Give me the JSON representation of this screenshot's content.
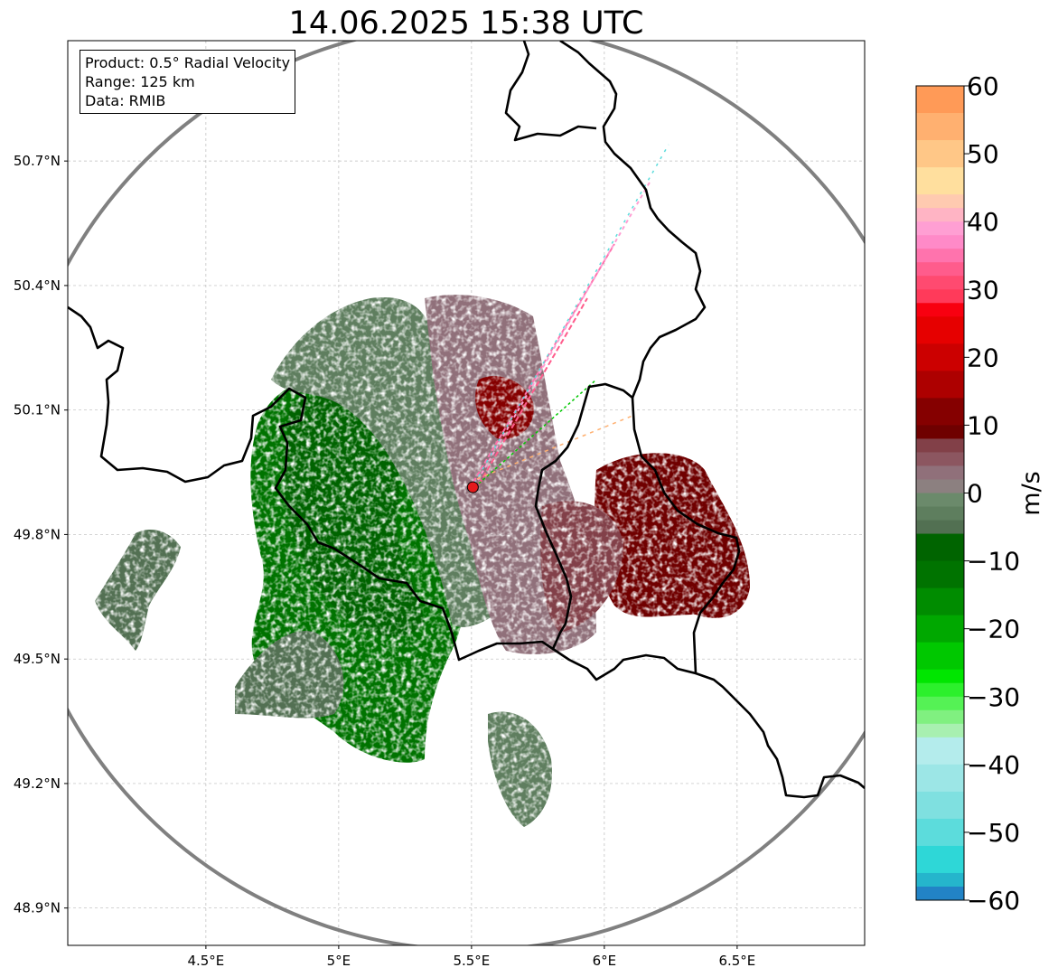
{
  "title": "14.06.2025 15:38 UTC",
  "info": {
    "product": "Product: 0.5° Radial Velocity",
    "range": "Range: 125 km",
    "data": "Data: RMIB"
  },
  "lat_labels": [
    "50.7°N",
    "50.4°N",
    "50.1°N",
    "49.8°N",
    "49.5°N",
    "49.2°N",
    "48.9°N"
  ],
  "lat_values": [
    50.7,
    50.4,
    50.1,
    49.8,
    49.5,
    49.2,
    48.9
  ],
  "lon_labels": [
    "4.5°E",
    "5°E",
    "5.5°E",
    "6°E",
    "6.5°E"
  ],
  "lon_values": [
    4.5,
    5.0,
    5.5,
    6.0,
    6.5
  ],
  "map_extent": {
    "lon": [
      3.98,
      6.98
    ],
    "lat": [
      48.81,
      50.99
    ]
  },
  "radar_site": {
    "lon": 5.505,
    "lat": 49.914
  },
  "colorbar": {
    "label": "m/s",
    "min": -60,
    "max": 60,
    "tick_values": [
      60,
      50,
      40,
      30,
      20,
      10,
      0,
      -10,
      -20,
      -30,
      -40,
      -50,
      -60
    ],
    "tick_labels": [
      "60",
      "50",
      "40",
      "30",
      "20",
      "10",
      "0",
      "−10",
      "−20",
      "−30",
      "−40",
      "−50",
      "−60"
    ],
    "bands": [
      {
        "from": 56,
        "to": 60,
        "color": "#ff9a57"
      },
      {
        "from": 52,
        "to": 56,
        "color": "#ffb070"
      },
      {
        "from": 48,
        "to": 52,
        "color": "#ffc787"
      },
      {
        "from": 44,
        "to": 48,
        "color": "#ffdf9e"
      },
      {
        "from": 42,
        "to": 44,
        "color": "#ffcab0"
      },
      {
        "from": 40,
        "to": 42,
        "color": "#ffb4c4"
      },
      {
        "from": 38,
        "to": 40,
        "color": "#ff9fd3"
      },
      {
        "from": 36,
        "to": 38,
        "color": "#ff8ac8"
      },
      {
        "from": 34,
        "to": 36,
        "color": "#ff73ad"
      },
      {
        "from": 32,
        "to": 34,
        "color": "#ff5c8c"
      },
      {
        "from": 30,
        "to": 32,
        "color": "#ff4a70"
      },
      {
        "from": 28,
        "to": 30,
        "color": "#ff3a5a"
      },
      {
        "from": 26,
        "to": 28,
        "color": "#f80010"
      },
      {
        "from": 22,
        "to": 26,
        "color": "#e60000"
      },
      {
        "from": 18,
        "to": 22,
        "color": "#cc0000"
      },
      {
        "from": 14,
        "to": 18,
        "color": "#ad0000"
      },
      {
        "from": 10,
        "to": 14,
        "color": "#850000"
      },
      {
        "from": 8,
        "to": 10,
        "color": "#6f0000"
      },
      {
        "from": 6,
        "to": 8,
        "color": "#824048"
      },
      {
        "from": 4,
        "to": 6,
        "color": "#8c5660"
      },
      {
        "from": 2,
        "to": 4,
        "color": "#90707a"
      },
      {
        "from": 0,
        "to": 2,
        "color": "#8c8080"
      },
      {
        "from": -2,
        "to": 0,
        "color": "#6b8a6b"
      },
      {
        "from": -4,
        "to": -2,
        "color": "#5e7e5e"
      },
      {
        "from": -6,
        "to": -4,
        "color": "#527052"
      },
      {
        "from": -10,
        "to": -6,
        "color": "#006400"
      },
      {
        "from": -14,
        "to": -10,
        "color": "#007300"
      },
      {
        "from": -18,
        "to": -14,
        "color": "#008c00"
      },
      {
        "from": -22,
        "to": -18,
        "color": "#00a800"
      },
      {
        "from": -26,
        "to": -22,
        "color": "#00c800"
      },
      {
        "from": -28,
        "to": -26,
        "color": "#00e600"
      },
      {
        "from": -30,
        "to": -28,
        "color": "#2cf02c"
      },
      {
        "from": -32,
        "to": -30,
        "color": "#55f255"
      },
      {
        "from": -34,
        "to": -32,
        "color": "#80f080"
      },
      {
        "from": -36,
        "to": -34,
        "color": "#a8f0b0"
      },
      {
        "from": -40,
        "to": -36,
        "color": "#b4ecec"
      },
      {
        "from": -44,
        "to": -40,
        "color": "#9ce6e6"
      },
      {
        "from": -48,
        "to": -44,
        "color": "#7fe0e0"
      },
      {
        "from": -52,
        "to": -48,
        "color": "#5cdcdc"
      },
      {
        "from": -56,
        "to": -52,
        "color": "#2ed7d7"
      },
      {
        "from": -58,
        "to": -56,
        "color": "#25b5cc"
      },
      {
        "from": -60,
        "to": -58,
        "color": "#2283c6"
      }
    ]
  },
  "colors": {
    "range_ring": "#808080",
    "border": "#000000",
    "grid": "#bbbbbb",
    "radar_marker": "#e31a1c",
    "approaching": "#006400",
    "receding": "#6f0000",
    "near_zero_green": "#5e7e5e",
    "near_zero_red": "#90707a"
  }
}
